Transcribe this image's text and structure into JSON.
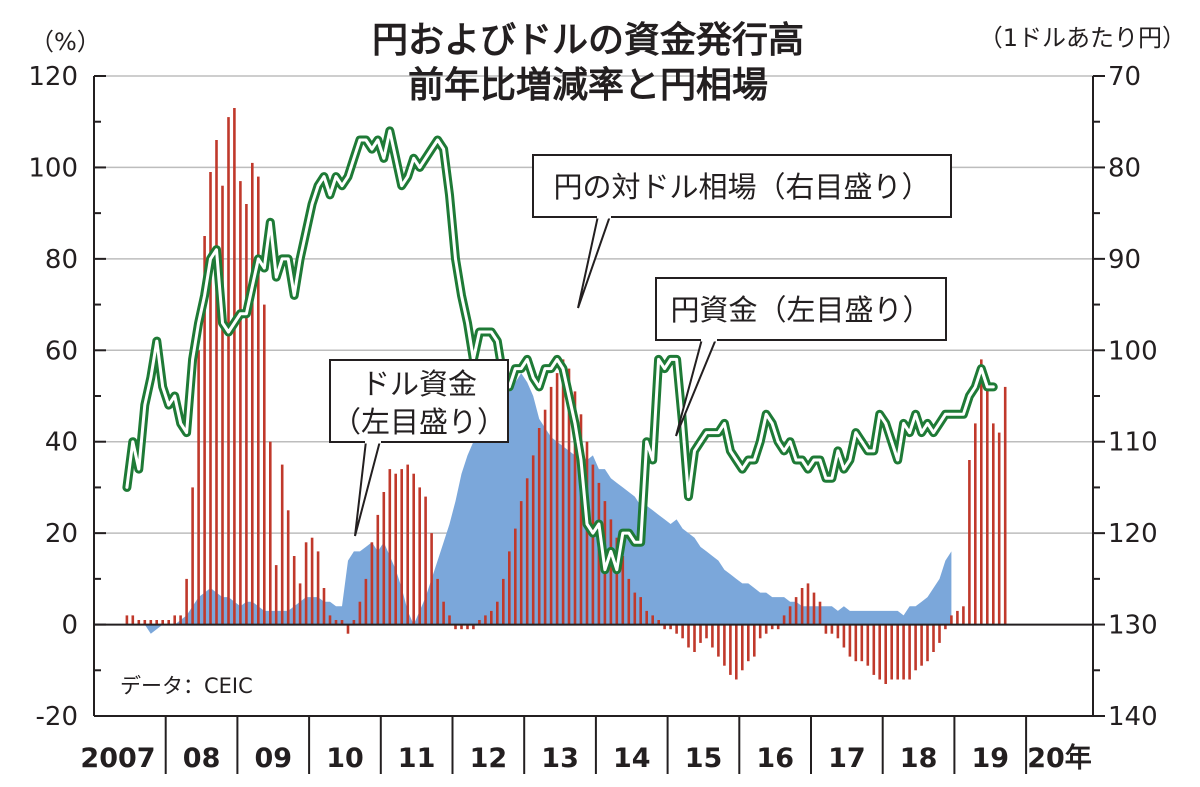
{
  "title_line1": "円およびドルの資金発行高",
  "title_line2": "前年比増減率と円相場",
  "left_unit": "（%）",
  "right_unit": "（1ドルあたり円）",
  "source": "データ：CEIC",
  "annotations": {
    "fx": "円の対ドル相場（右目盛り）",
    "yen": "円資金（左目盛り）",
    "usd_line1": "ドル資金",
    "usd_line2": "（左目盛り）"
  },
  "chart_data": {
    "type": "bar",
    "x_start": "2007-06",
    "frequency": "monthly",
    "x_tick_labels": [
      "2007",
      "08",
      "09",
      "10",
      "11",
      "12",
      "13",
      "14",
      "15",
      "16",
      "17",
      "18",
      "19",
      "20年"
    ],
    "left_axis": {
      "ylim": [
        -20,
        120
      ],
      "ticks": [
        -20,
        0,
        20,
        40,
        60,
        80,
        100,
        120
      ]
    },
    "right_axis": {
      "ylim": [
        140,
        70
      ],
      "inverted": true,
      "ticks": [
        70,
        80,
        90,
        100,
        110,
        120,
        130,
        140
      ]
    },
    "series": [
      {
        "name": "ドル資金（左目盛り）",
        "type": "bar",
        "axis": "left",
        "color": "#c0392b",
        "values": [
          2,
          2,
          1,
          1,
          1,
          1,
          1,
          1,
          2,
          2,
          10,
          30,
          60,
          85,
          99,
          106,
          96,
          111,
          113,
          97,
          92,
          101,
          98,
          70,
          40,
          13,
          35,
          25,
          15,
          9,
          18,
          19,
          16,
          8,
          2,
          1,
          1,
          -2,
          1,
          5,
          10,
          18,
          24,
          29,
          34,
          33,
          34,
          35,
          33,
          30,
          28,
          20,
          10,
          5,
          2,
          -1,
          -1,
          -1,
          -1,
          1,
          2,
          3,
          5,
          10,
          16,
          21,
          27,
          32,
          37,
          43,
          47,
          52,
          55,
          58,
          56,
          51,
          46,
          40,
          35,
          31,
          27,
          23,
          19,
          15,
          10,
          7,
          6,
          3,
          2,
          1,
          -1,
          -1,
          -2,
          -3,
          -5,
          -6,
          -4,
          -3,
          -5,
          -7,
          -9,
          -11,
          -12,
          -10,
          -8,
          -7,
          -3,
          -2,
          -1,
          -1,
          2,
          4,
          6,
          8,
          9,
          7,
          5,
          -2,
          -2,
          -3,
          -5,
          -7,
          -8,
          -8,
          -9,
          -11,
          -12,
          -13,
          -12,
          -12,
          -12,
          -12,
          -10,
          -9,
          -8,
          -6,
          -4,
          -1,
          2,
          3,
          4,
          36,
          44,
          58,
          52,
          44,
          42,
          52
        ]
      },
      {
        "name": "円資金（左目盛り）",
        "type": "area",
        "axis": "left",
        "color": "#7ba7da",
        "values": [
          0,
          0,
          0,
          0,
          -2,
          -1,
          0,
          0,
          0,
          1,
          2,
          4,
          6,
          7,
          8,
          7,
          6,
          6,
          5,
          4,
          5,
          5,
          4,
          3,
          3,
          3,
          3,
          3,
          4,
          5,
          6,
          6,
          6,
          5,
          5,
          4,
          4,
          14,
          16,
          16,
          17,
          18,
          16,
          18,
          15,
          12,
          8,
          3,
          0,
          3,
          6,
          10,
          14,
          18,
          22,
          27,
          33,
          37,
          40,
          44,
          48,
          51,
          51,
          50,
          51,
          53,
          55,
          53,
          50,
          45,
          43,
          41,
          40,
          39,
          38,
          37,
          37,
          36,
          37,
          34,
          34,
          32,
          31,
          30,
          29,
          28,
          26,
          26,
          25,
          24,
          23,
          22,
          23,
          21,
          20,
          19,
          17,
          16,
          15,
          14,
          12,
          11,
          10,
          9,
          9,
          8,
          7,
          7,
          6,
          6,
          6,
          5,
          5,
          4,
          4,
          4,
          4,
          4,
          4,
          3,
          4,
          3,
          3,
          3,
          3,
          3,
          3,
          3,
          3,
          3,
          2,
          4,
          4,
          5,
          6,
          8,
          10,
          14,
          16
        ]
      },
      {
        "name": "円の対ドル相場（右目盛り）",
        "type": "line",
        "axis": "right",
        "color": "#1e7a36",
        "values": [
          115,
          110,
          113,
          106,
          103,
          99,
          104,
          106,
          105,
          108,
          109,
          101,
          97,
          94,
          90,
          89,
          97,
          98,
          97,
          96,
          96,
          93,
          90,
          91,
          86,
          92,
          90,
          90,
          94,
          90,
          87,
          84,
          82,
          81,
          83,
          81,
          82,
          81,
          79,
          77,
          77,
          78,
          77,
          79,
          76,
          79,
          82,
          81,
          79,
          80,
          79,
          78,
          77,
          78,
          83,
          90,
          94,
          97,
          101,
          98,
          98,
          98,
          99,
          103,
          104,
          102,
          102,
          101,
          103,
          104,
          102,
          102,
          101,
          102,
          105,
          108,
          112,
          119,
          120,
          119,
          124,
          122,
          124,
          120,
          120,
          121,
          121,
          110,
          112,
          101,
          102,
          101,
          101,
          108,
          116,
          111,
          110,
          109,
          109,
          109,
          108,
          111,
          112,
          113,
          112,
          112,
          110,
          107,
          108,
          110,
          111,
          110,
          112,
          112,
          113,
          112,
          112,
          114,
          114,
          111,
          113,
          112,
          109,
          110,
          111,
          111,
          107,
          108,
          110,
          112,
          108,
          109,
          107,
          109,
          108,
          109,
          108,
          107,
          107,
          107,
          107,
          105,
          104,
          102,
          104,
          104
        ]
      }
    ]
  }
}
